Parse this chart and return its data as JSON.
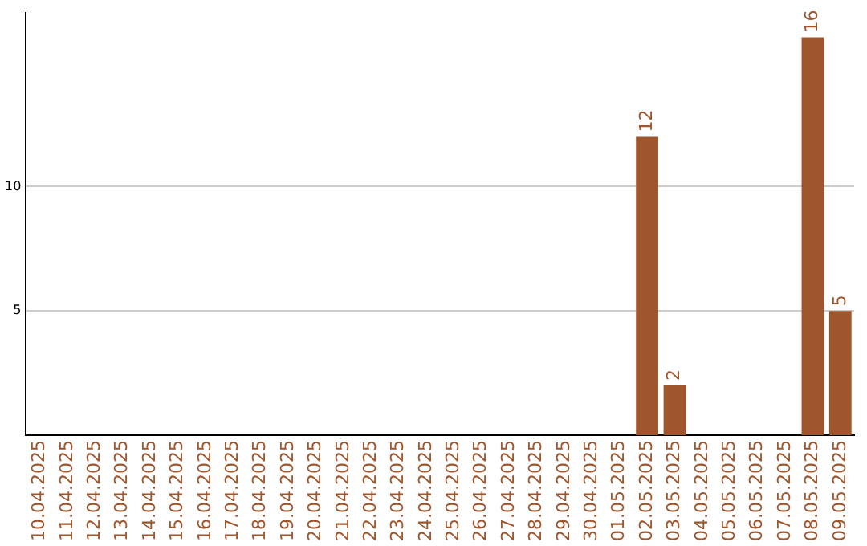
{
  "chart_data": {
    "type": "bar",
    "categories": [
      "10.04.2025",
      "11.04.2025",
      "12.04.2025",
      "13.04.2025",
      "14.04.2025",
      "15.04.2025",
      "16.04.2025",
      "17.04.2025",
      "18.04.2025",
      "19.04.2025",
      "20.04.2025",
      "21.04.2025",
      "22.04.2025",
      "23.04.2025",
      "24.04.2025",
      "25.04.2025",
      "26.04.2025",
      "27.04.2025",
      "28.04.2025",
      "29.04.2025",
      "30.04.2025",
      "01.05.2025",
      "02.05.2025",
      "03.05.2025",
      "04.05.2025",
      "05.05.2025",
      "06.05.2025",
      "07.05.2025",
      "08.05.2025",
      "09.05.2025"
    ],
    "values": [
      0,
      0,
      0,
      0,
      0,
      0,
      0,
      0,
      0,
      0,
      0,
      0,
      0,
      0,
      0,
      0,
      0,
      0,
      0,
      0,
      0,
      0,
      12,
      2,
      0,
      0,
      0,
      0,
      16,
      5
    ],
    "value_labels": [
      null,
      null,
      null,
      null,
      null,
      null,
      null,
      null,
      null,
      null,
      null,
      null,
      null,
      null,
      null,
      null,
      null,
      null,
      null,
      null,
      null,
      null,
      "12",
      "2",
      null,
      null,
      null,
      null,
      "16",
      "5"
    ],
    "color": "#a0562c",
    "ylim": [
      0,
      17
    ],
    "yticks": [
      5,
      10
    ],
    "grid": "y"
  }
}
